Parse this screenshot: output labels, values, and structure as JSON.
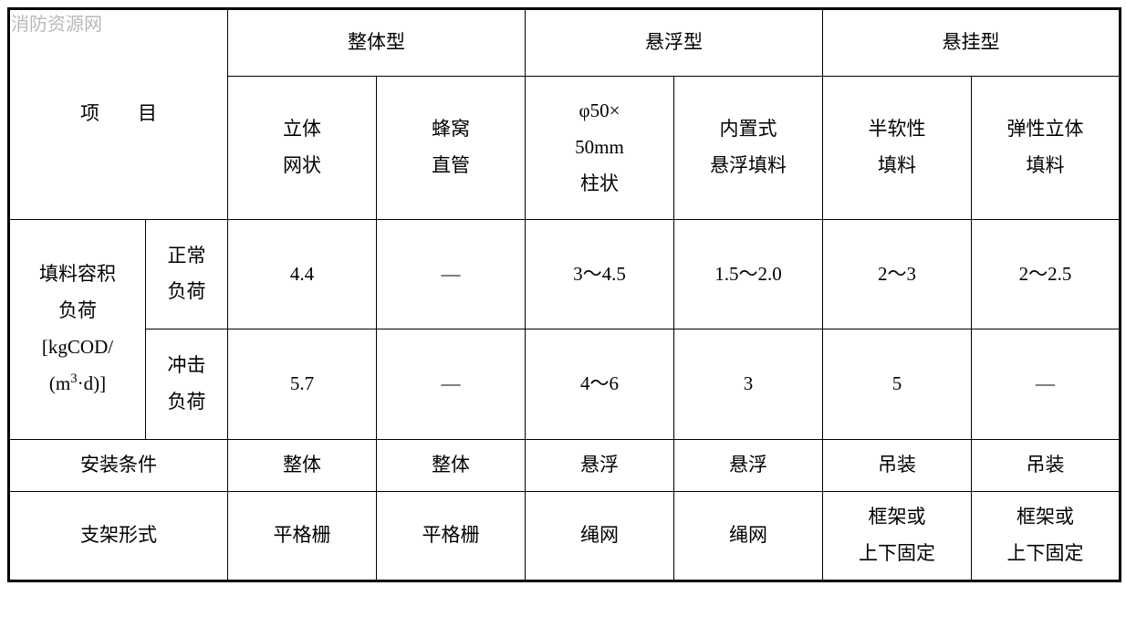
{
  "watermark": "消防资源网",
  "table": {
    "border_color": "#000000",
    "background_color": "#ffffff",
    "text_color": "#000000",
    "font_family": "SimSun",
    "header_fontsize": 21,
    "cell_fontsize": 21,
    "outer_border_width": 3,
    "inner_border_width": 1,
    "layout": {
      "total_width": 1218,
      "label_main_width": 150,
      "label_sub_width": 90,
      "data_col_width": 163
    },
    "headers": {
      "row_label": "项　　目",
      "groups": [
        {
          "label": "整体型",
          "span": 2
        },
        {
          "label": "悬浮型",
          "span": 2
        },
        {
          "label": "悬挂型",
          "span": 2
        }
      ],
      "sub_columns": [
        "立体\n网状",
        "蜂窝\n直管",
        "φ50×\n50mm\n柱状",
        "内置式\n悬浮填料",
        "半软性\n填料",
        "弹性立体\n填料"
      ]
    },
    "rows": [
      {
        "label_main": "填料容积\n负荷\n[kgCOD/\n(m³·d)]",
        "label_main_html": "填料容积<br>负荷<br>[kgCOD/<br>(m<sup>3</sup>·d)]",
        "sub_rows": [
          {
            "label": "正常\n负荷",
            "cells": [
              "4.4",
              "—",
              "3～4.5",
              "1.5～2.0",
              "2～3",
              "2～2.5"
            ]
          },
          {
            "label": "冲击\n负荷",
            "cells": [
              "5.7",
              "—",
              "4～6",
              "3",
              "5",
              "—"
            ]
          }
        ]
      },
      {
        "label_main": "安装条件",
        "cells": [
          "整体",
          "整体",
          "悬浮",
          "悬浮",
          "吊装",
          "吊装"
        ]
      },
      {
        "label_main": "支架形式",
        "cells": [
          "平格栅",
          "平格栅",
          "绳网",
          "绳网",
          "框架或\n上下固定",
          "框架或\n上下固定"
        ]
      }
    ]
  }
}
